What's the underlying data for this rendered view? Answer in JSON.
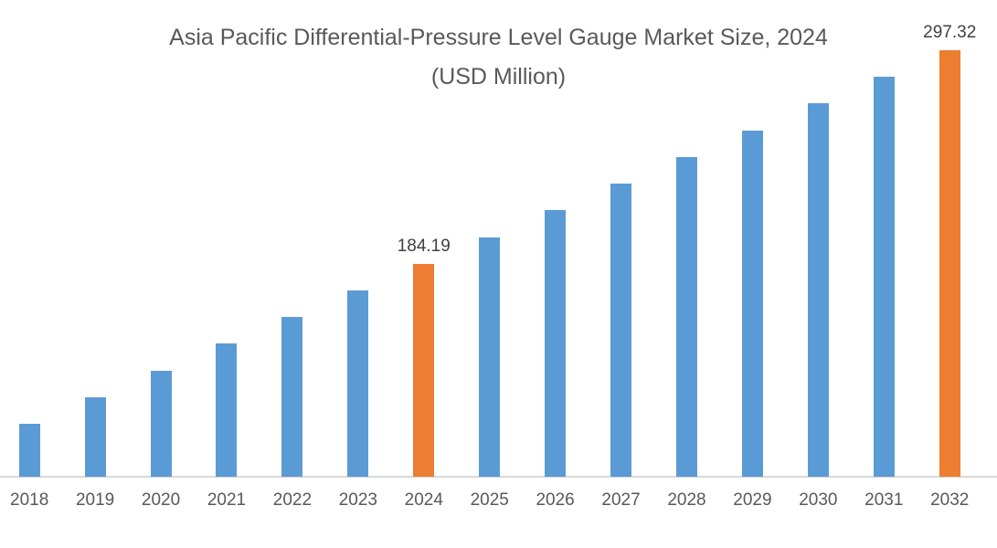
{
  "chart_data": {
    "type": "bar",
    "title": "Asia Pacific Differential-Pressure Level Gauge Market Size, 2024 (USD Million)",
    "categories": [
      "2018",
      "2019",
      "2020",
      "2021",
      "2022",
      "2023",
      "2024",
      "2025",
      "2026",
      "2027",
      "2028",
      "2029",
      "2030",
      "2031",
      "2032"
    ],
    "series": [
      {
        "name": "Market Size (USD Million)",
        "values": [
          99.34,
          113.48,
          127.63,
          141.77,
          155.91,
          170.05,
          184.19,
          198.33,
          212.47,
          226.61,
          240.76,
          254.9,
          269.04,
          283.18,
          297.32
        ]
      }
    ],
    "data_labels": [
      {
        "category": "2024",
        "text": "184.19"
      },
      {
        "category": "2032",
        "text": "297.32"
      }
    ],
    "highlight_categories": [
      "2024",
      "2032"
    ],
    "xlabel": "",
    "ylabel": "",
    "ylim": [
      71.3,
      310
    ],
    "grid": false,
    "legend": false,
    "colors": {
      "bar": "#5B9BD5",
      "highlight": "#ED7D31",
      "axis_line": "#D9D9D9",
      "title_text": "#595959",
      "axis_label_text": "#595959",
      "data_label_text": "#404040",
      "background": "#FFFFFF"
    }
  }
}
